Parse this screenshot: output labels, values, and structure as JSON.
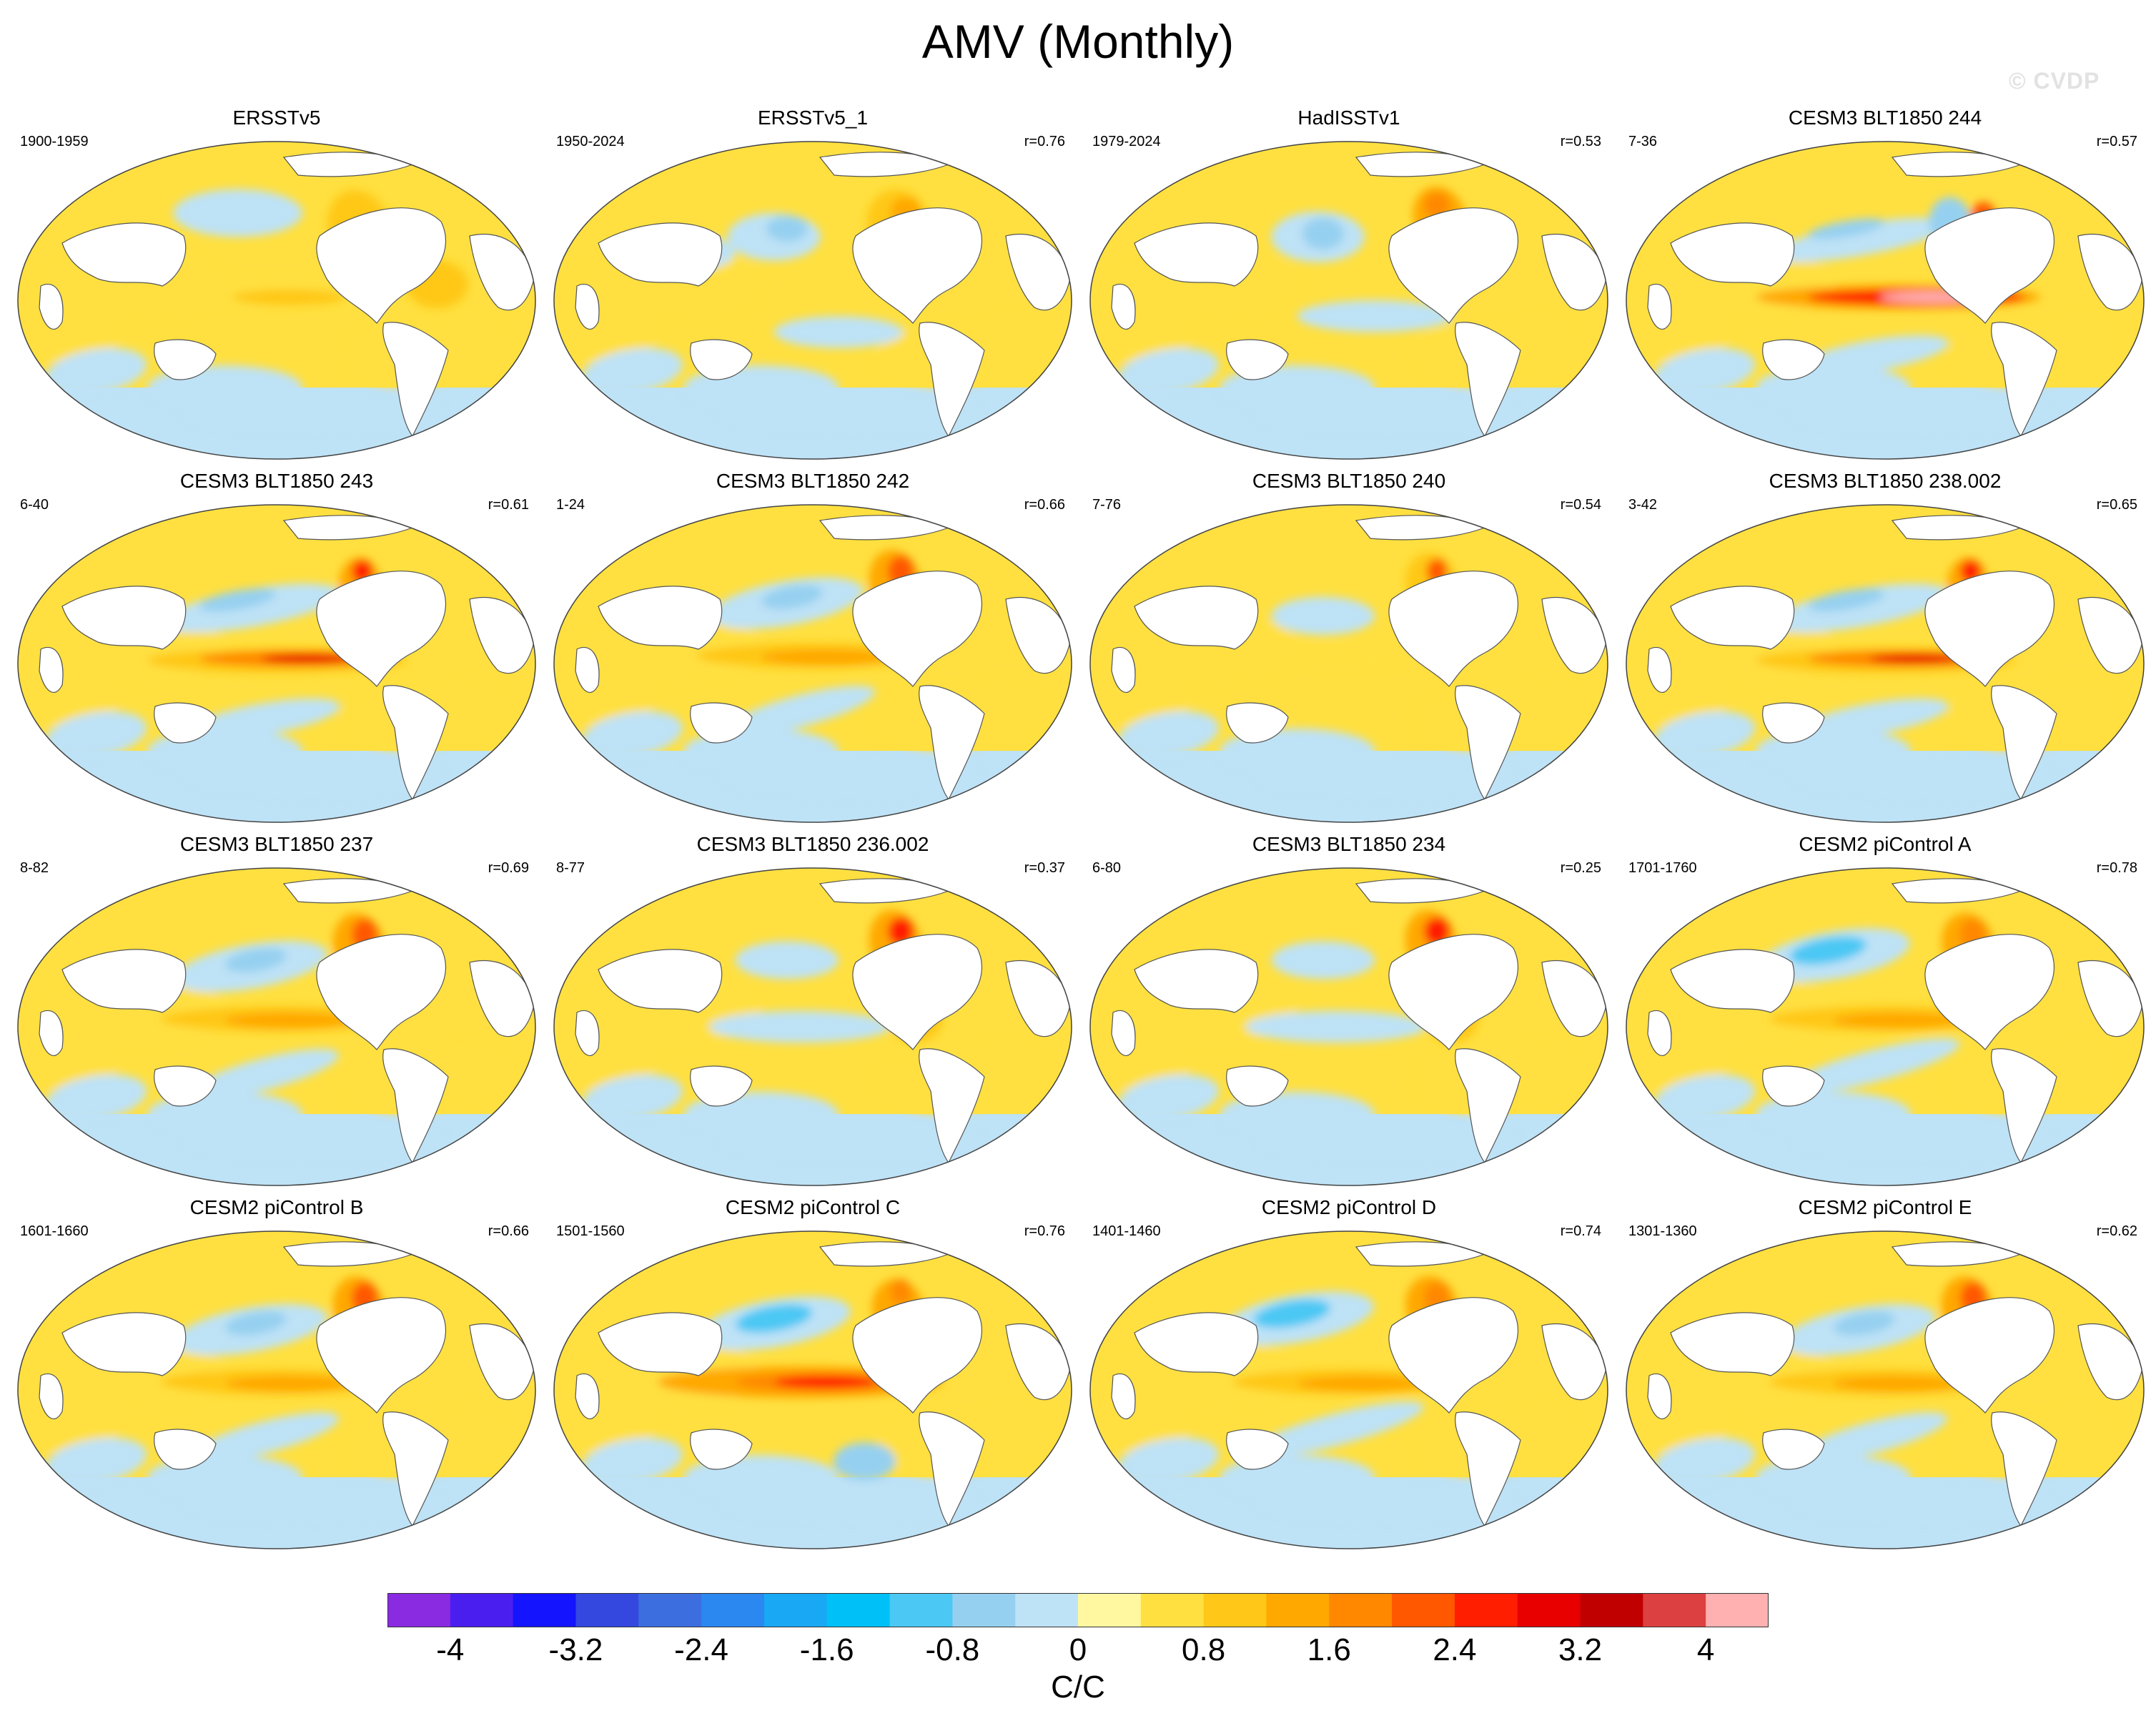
{
  "title": "AMV (Monthly)",
  "watermark": "© CVDP",
  "icons": {
    "map-icon": "robinson-projection-world-map",
    "watermark-icon": "copyright-symbol"
  },
  "panels": [
    {
      "name": "ERSSTv5",
      "period": "1900-1959",
      "corr": "",
      "pattern": "obs1"
    },
    {
      "name": "ERSSTv5_1",
      "period": "1950-2024",
      "corr": "r=0.76",
      "pattern": "obs2"
    },
    {
      "name": "HadISSTv1",
      "period": "1979-2024",
      "corr": "r=0.53",
      "pattern": "obs3"
    },
    {
      "name": "CESM3 BLT1850 244",
      "period": "7-36",
      "corr": "r=0.57",
      "pattern": "enso"
    },
    {
      "name": "CESM3 BLT1850 243",
      "period": "6-40",
      "corr": "r=0.61",
      "pattern": "enso2"
    },
    {
      "name": "CESM3 BLT1850 242",
      "period": "1-24",
      "corr": "r=0.66",
      "pattern": "pdo"
    },
    {
      "name": "CESM3 BLT1850 240",
      "period": "7-76",
      "corr": "r=0.54",
      "pattern": "weak"
    },
    {
      "name": "CESM3 BLT1850 238.002",
      "period": "3-42",
      "corr": "r=0.65",
      "pattern": "enso2"
    },
    {
      "name": "CESM3 BLT1850 237",
      "period": "8-82",
      "corr": "r=0.69",
      "pattern": "pdo"
    },
    {
      "name": "CESM3 BLT1850 236.002",
      "period": "8-77",
      "corr": "r=0.37",
      "pattern": "atl"
    },
    {
      "name": "CESM3 BLT1850 234",
      "period": "6-80",
      "corr": "r=0.25",
      "pattern": "atl"
    },
    {
      "name": "CESM2 piControl A",
      "period": "1701-1760",
      "corr": "r=0.78",
      "pattern": "pdo2"
    },
    {
      "name": "CESM2 piControl B",
      "period": "1601-1660",
      "corr": "r=0.66",
      "pattern": "pdo"
    },
    {
      "name": "CESM2 piControl C",
      "period": "1501-1560",
      "corr": "r=0.76",
      "pattern": "enso3"
    },
    {
      "name": "CESM2 piControl D",
      "period": "1401-1460",
      "corr": "r=0.74",
      "pattern": "pdo2"
    },
    {
      "name": "CESM2 piControl E",
      "period": "1301-1360",
      "corr": "r=0.62",
      "pattern": "pdo"
    }
  ],
  "colorbar": {
    "colors": [
      "#8a2be2",
      "#4b1ef0",
      "#1414ff",
      "#3448e0",
      "#3c6ee0",
      "#2a88f0",
      "#18a8f4",
      "#00c0f8",
      "#4cc8f4",
      "#96d0f0",
      "#bee2f6",
      "#fff8a0",
      "#ffe040",
      "#ffc818",
      "#ffa800",
      "#ff8800",
      "#ff5800",
      "#ff1e00",
      "#e80000",
      "#c00000",
      "#dc4040",
      "#ffb0b0"
    ],
    "ticks": [
      "-4",
      "-3.2",
      "-2.4",
      "-1.6",
      "-0.8",
      "0",
      "0.8",
      "1.6",
      "2.4",
      "3.2",
      "4"
    ],
    "units": "C/C"
  }
}
